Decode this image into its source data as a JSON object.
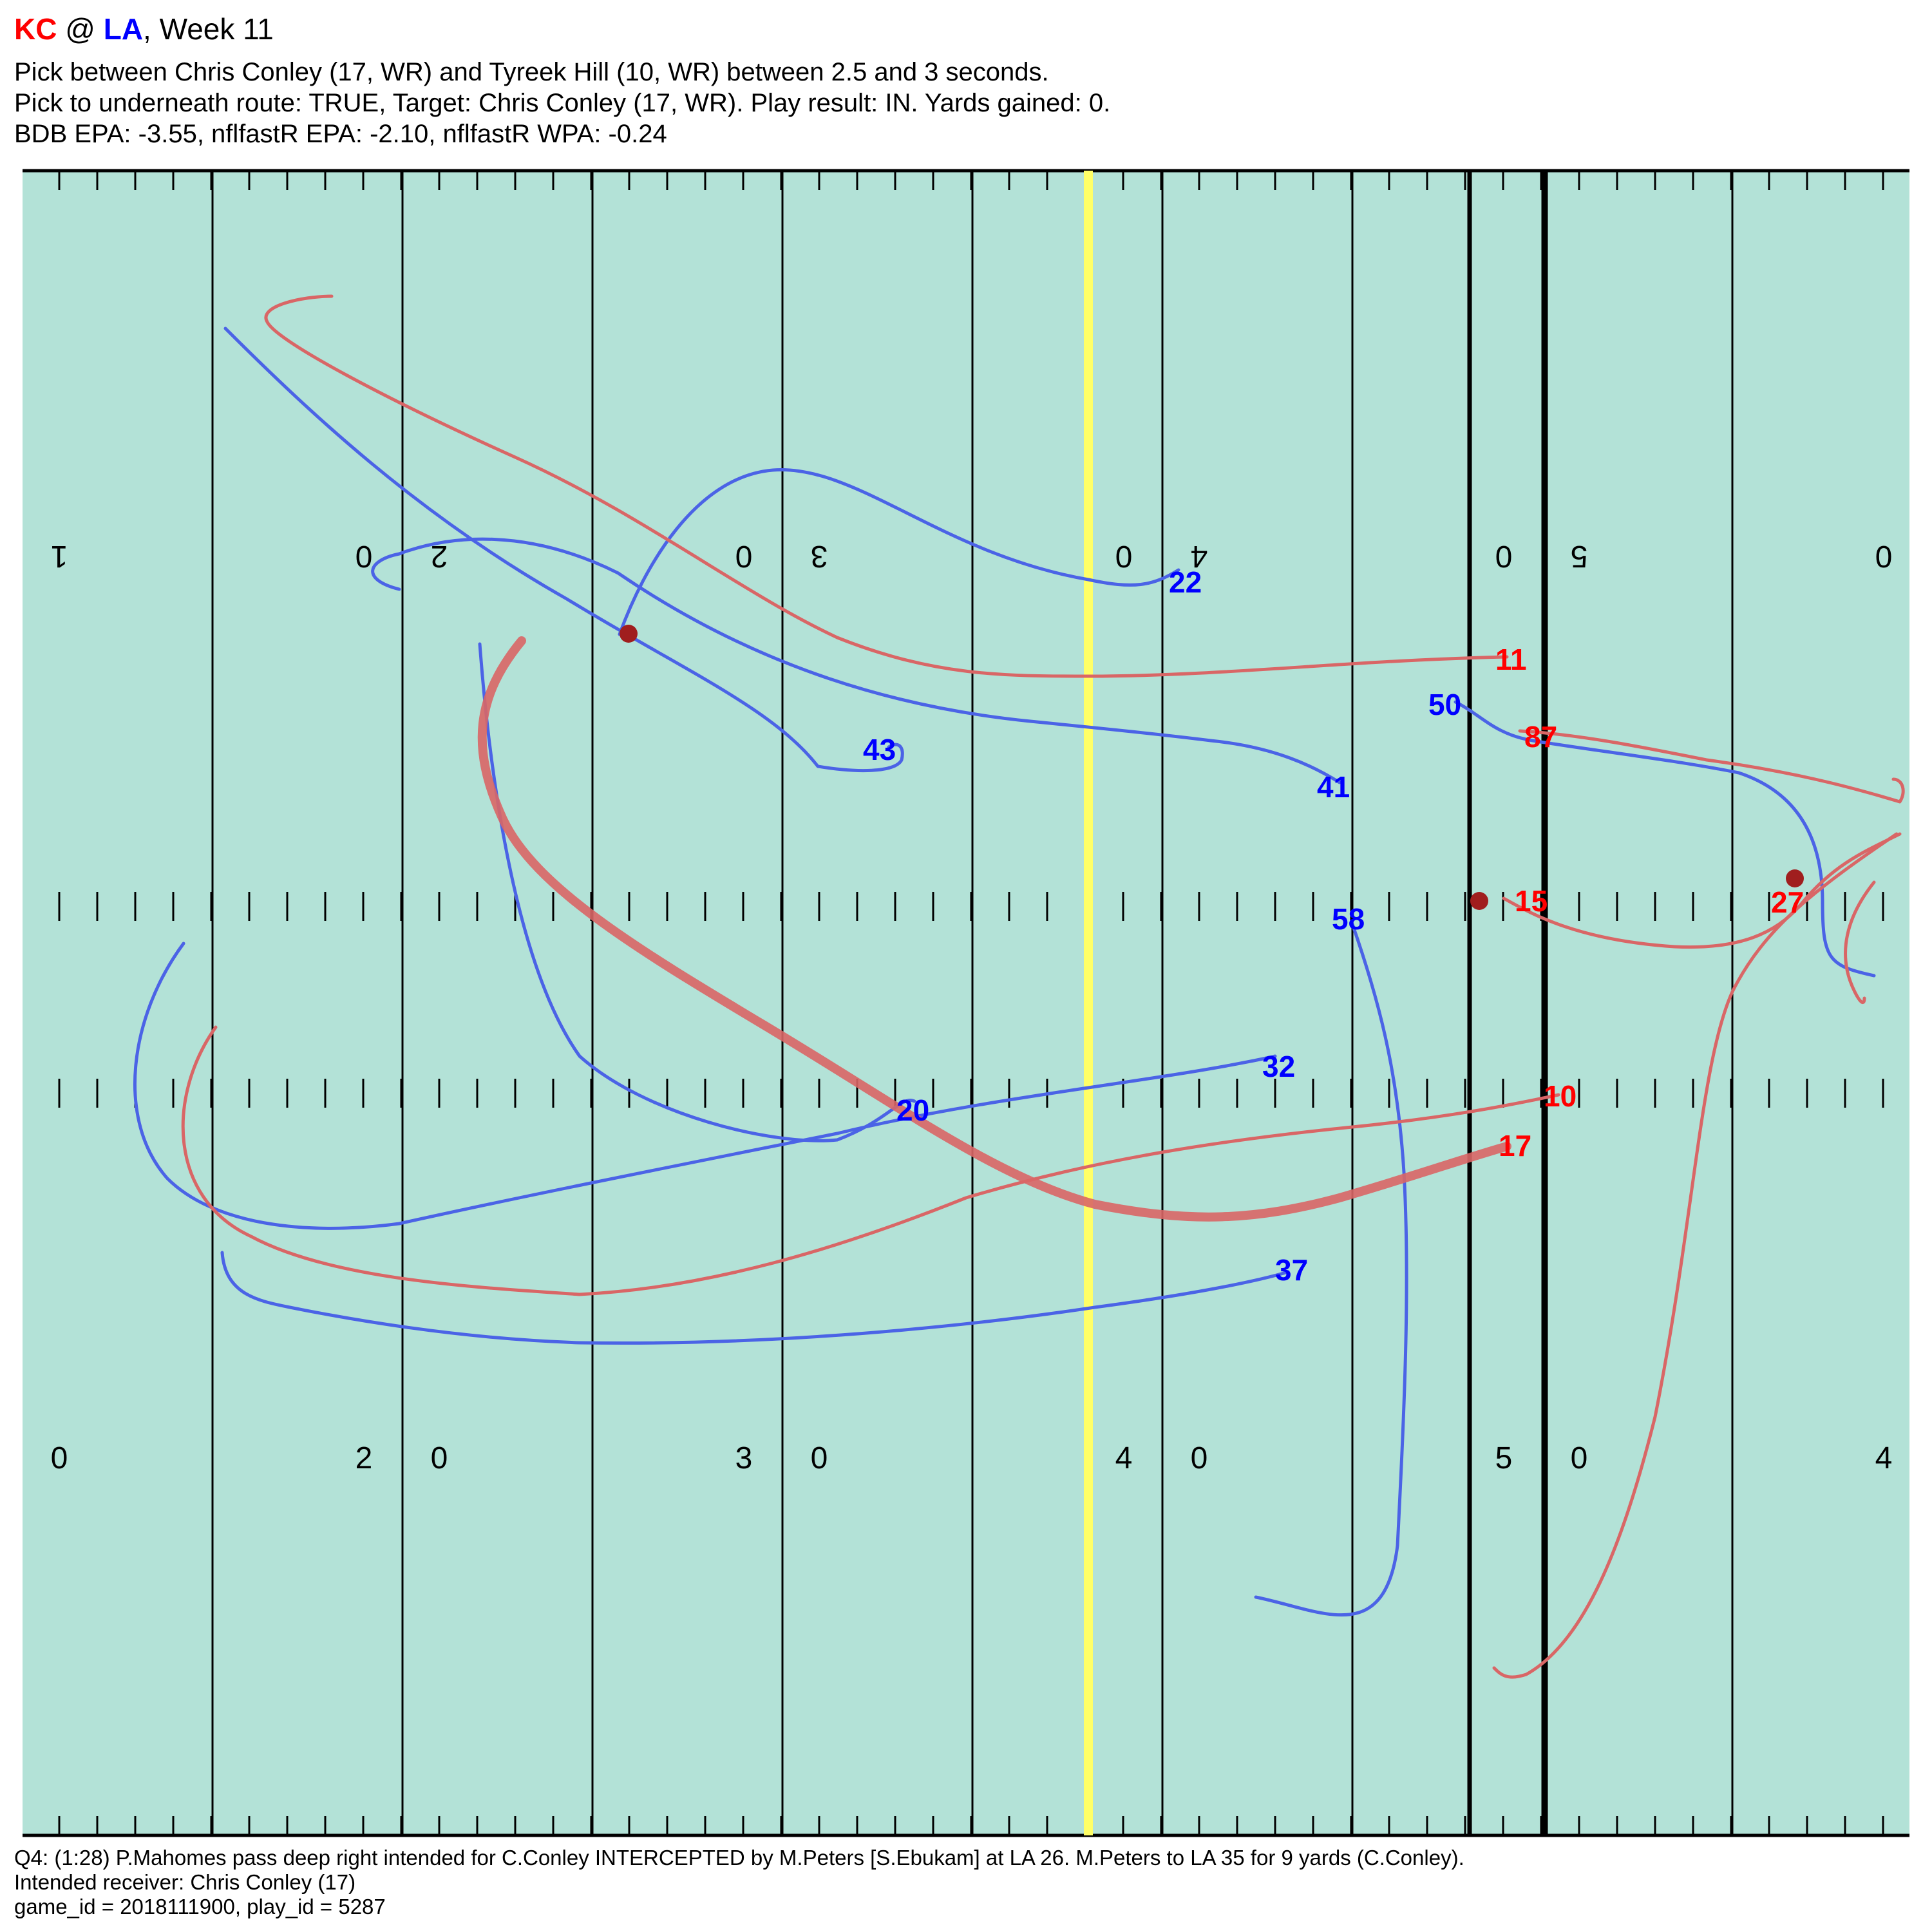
{
  "header": {
    "team_away": "KC",
    "at": " @ ",
    "team_home": "LA",
    "week": ", Week 11",
    "line1": "Pick between Chris Conley (17, WR) and Tyreek Hill (10, WR) between 2.5 and 3 seconds.",
    "line2": "Pick to underneath route: TRUE, Target: Chris Conley (17, WR). Play result: IN. Yards gained: 0.",
    "line3": "BDB EPA: -3.55, nflfastR EPA: -2.10, nflfastR WPA: -0.24"
  },
  "footer": {
    "description": "Q4: (1:28) P.Mahomes pass deep right intended for C.Conley INTERCEPTED by M.Peters [S.Ebukam] at LA 26. M.Peters to LA 35 for 9 yards (C.Conley).",
    "intended": "Intended receiver: Chris Conley (17)",
    "ids": "game_id = 2018111900, play_id = 5287"
  },
  "colors": {
    "field": "#b3e2d7",
    "offense_line": "#d96666",
    "offense_label": "#ff0000",
    "defense_line": "#4b63e6",
    "defense_label": "#0000ff",
    "line_of_scrimmage": "#000000",
    "first_down": "#ffff66",
    "ball_marker": "#a01e1e"
  },
  "field_numbers": {
    "top": [
      "1",
      "0",
      "2",
      "0",
      "3",
      "0",
      "4",
      "0",
      "5",
      "0"
    ],
    "bottom": [
      "0",
      "2",
      "0",
      "3",
      "0",
      "4",
      "0",
      "5",
      "0",
      "4"
    ]
  },
  "players": {
    "offense": [
      "11",
      "87",
      "15",
      "27",
      "10",
      "17"
    ],
    "defense": [
      "22",
      "50",
      "43",
      "41",
      "58",
      "32",
      "20",
      "37"
    ]
  }
}
